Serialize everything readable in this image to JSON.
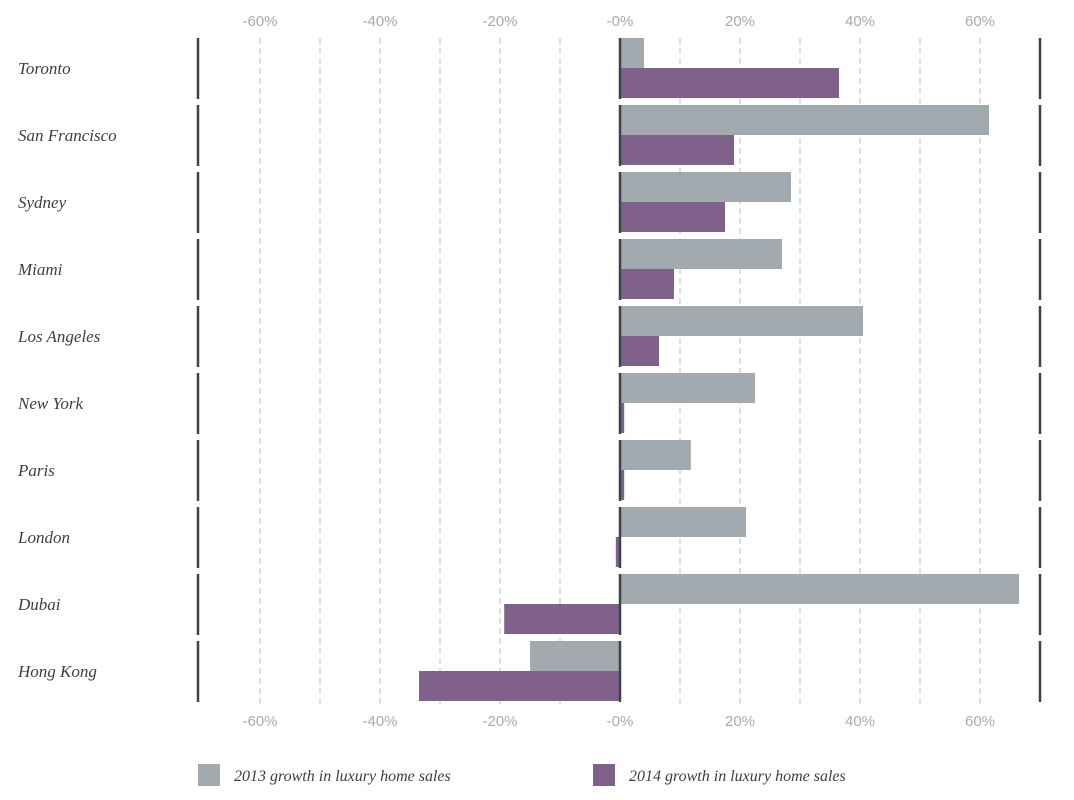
{
  "chart_data": {
    "type": "bar",
    "orientation": "horizontal",
    "categories": [
      "Toronto",
      "San Francisco",
      "Sydney",
      "Miami",
      "Los Angeles",
      "New York",
      "Paris",
      "London",
      "Dubai",
      "Hong Kong"
    ],
    "series": [
      {
        "name": "2013 growth in luxury home sales",
        "color": "#a3aaaf",
        "values": [
          4,
          61.5,
          28.5,
          27,
          40.5,
          22.5,
          11.8,
          21,
          66.5,
          -15
        ]
      },
      {
        "name": "2014 growth in luxury home sales",
        "color": "#7f6189",
        "values": [
          36.5,
          19,
          17.5,
          9,
          6.5,
          0.7,
          0.7,
          -0.7,
          -19.3,
          -33.5
        ]
      }
    ],
    "xlim": [
      -70,
      70
    ],
    "ticks": [
      -60,
      -40,
      -20,
      0,
      20,
      40,
      60
    ],
    "tick_labels": [
      "-60%",
      "-40%",
      "-20%",
      "-0%",
      "20%",
      "40%",
      "60%"
    ],
    "grid": true,
    "legend_position": "bottom",
    "title": "",
    "xlabel": "",
    "ylabel": ""
  }
}
